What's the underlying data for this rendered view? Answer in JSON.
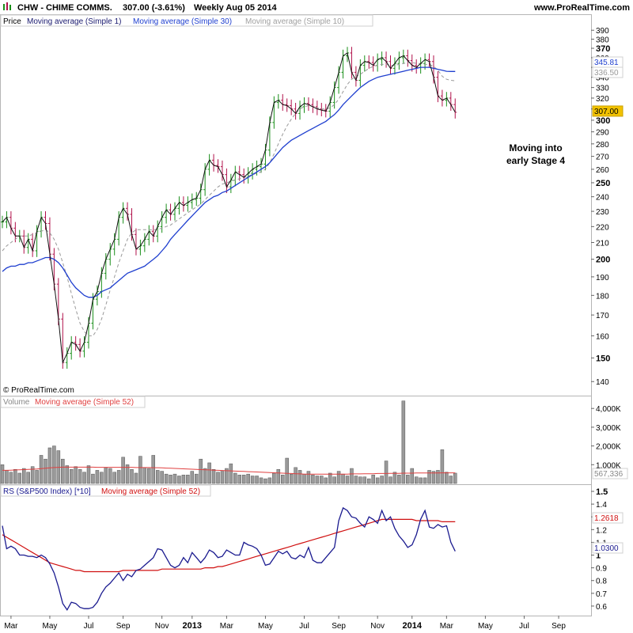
{
  "header": {
    "symbol": "CHW - CHIME COMMS.",
    "quote": "307.00 (-3.61%)",
    "period": "Weekly  Aug 05 2014",
    "site": "www.ProRealTime.com",
    "copyright": "© ProRealTime.com"
  },
  "colors": {
    "up": "#1a8f1a",
    "down": "#b0104a",
    "price_line": "#111111",
    "ma30": "#1f3fcf",
    "ma10": "#999999",
    "volume_bar": "#9a9a9a",
    "volume_ma": "#e04040",
    "rs_line": "#1a1a8f",
    "rs_ma": "#d01010",
    "last_price_box": "#f2c200"
  },
  "annotation": [
    "Moving into",
    "early Stage 4"
  ],
  "chart_data": [
    {
      "type": "candlestick",
      "panel": "price",
      "legend": [
        "Price",
        "Moving average (Simple 1)",
        "Moving average (Simple 30)",
        "Moving average (Simple 10)"
      ],
      "scale": "log",
      "ylim": [
        135,
        392
      ],
      "y_ticks": [
        140,
        150,
        160,
        170,
        180,
        190,
        200,
        210,
        220,
        230,
        240,
        250,
        260,
        270,
        280,
        290,
        300,
        310,
        320,
        330,
        340,
        350,
        360,
        370,
        380,
        390
      ],
      "y_ticks_bold": [
        150,
        200,
        250,
        300,
        370
      ],
      "close": [
        223,
        226,
        219,
        214,
        214,
        207,
        212,
        205,
        217,
        226,
        222,
        203,
        186,
        168,
        148,
        152,
        157,
        156,
        153,
        157,
        166,
        178,
        182,
        192,
        200,
        206,
        212,
        226,
        232,
        228,
        215,
        206,
        208,
        212,
        217,
        214,
        220,
        226,
        231,
        228,
        232,
        236,
        234,
        236,
        238,
        239,
        245,
        260,
        267,
        263,
        262,
        256,
        247,
        252,
        258,
        256,
        254,
        257,
        260,
        262,
        264,
        275,
        298,
        316,
        318,
        314,
        313,
        310,
        306,
        312,
        315,
        314,
        312,
        310,
        309,
        308,
        316,
        330,
        345,
        362,
        365,
        345,
        337,
        352,
        356,
        355,
        352,
        358,
        360,
        356,
        349,
        354,
        360,
        362,
        357,
        352,
        350,
        354,
        358,
        356,
        340,
        322,
        318,
        320,
        314,
        307
      ],
      "ma30": [
        193,
        195,
        196,
        196,
        197,
        197,
        198,
        198,
        199,
        200,
        201,
        201,
        200,
        198,
        195,
        191,
        187,
        184,
        182,
        180,
        179,
        179,
        180,
        182,
        183,
        184,
        186,
        188,
        190,
        192,
        193,
        194,
        195,
        196,
        198,
        200,
        202,
        205,
        208,
        212,
        215,
        218,
        221,
        224,
        227,
        230,
        233,
        236,
        238,
        240,
        241,
        243,
        244,
        246,
        248,
        250,
        252,
        254,
        256,
        258,
        260,
        262,
        265,
        269,
        273,
        277,
        280,
        283,
        285,
        287,
        289,
        291,
        293,
        295,
        297,
        299,
        302,
        305,
        309,
        314,
        318,
        322,
        326,
        330,
        333,
        336,
        338,
        340,
        341,
        342,
        343,
        344,
        345,
        346,
        347,
        348,
        349,
        350,
        350,
        350,
        349,
        348,
        347,
        346,
        345.81,
        345.81
      ],
      "ma10": [
        205,
        208,
        210,
        212,
        214,
        214,
        214,
        215,
        216,
        217,
        218,
        216,
        212,
        206,
        198,
        190,
        181,
        173,
        166,
        162,
        160,
        160,
        163,
        168,
        175,
        183,
        190,
        198,
        205,
        212,
        216,
        218,
        218,
        218,
        218,
        218,
        218,
        219,
        220,
        221,
        223,
        225,
        227,
        229,
        231,
        233,
        235,
        238,
        241,
        244,
        247,
        249,
        250,
        251,
        252,
        253,
        254,
        255,
        256,
        257,
        258,
        260,
        265,
        272,
        280,
        288,
        295,
        301,
        306,
        310,
        312,
        313,
        312,
        311,
        310,
        310,
        311,
        314,
        319,
        326,
        333,
        338,
        341,
        343,
        346,
        349,
        351,
        352,
        353,
        353,
        352,
        352,
        353,
        354,
        355,
        355,
        354,
        354,
        353,
        353,
        351,
        347,
        341,
        338,
        337,
        336.5
      ],
      "last_labels": {
        "ma30": "345.81",
        "ma10": "336.50",
        "price": "307.00"
      }
    },
    {
      "type": "bar",
      "panel": "volume",
      "legend": [
        "Volume",
        "Moving average (Simple 52)"
      ],
      "ylim": [
        0,
        4600000
      ],
      "y_tick_labels": [
        "1,000K",
        "2,000K",
        "3,000K",
        "4,000K"
      ],
      "y_tick_values": [
        1000000,
        2000000,
        3000000,
        4000000
      ],
      "values": [
        1000000,
        700000,
        600000,
        750000,
        550000,
        800000,
        600000,
        900000,
        700000,
        1500000,
        1300000,
        1900000,
        2000000,
        1750000,
        1300000,
        950000,
        750000,
        900000,
        750000,
        600000,
        950000,
        500000,
        700000,
        600000,
        850000,
        800000,
        600000,
        700000,
        1400000,
        1000000,
        750000,
        550000,
        1450000,
        850000,
        800000,
        1500000,
        700000,
        650000,
        500000,
        450000,
        500000,
        400000,
        450000,
        450000,
        650000,
        500000,
        1300000,
        800000,
        1100000,
        750000,
        600000,
        650000,
        800000,
        1050000,
        550000,
        450000,
        450000,
        500000,
        400000,
        400000,
        300000,
        250000,
        300000,
        550000,
        750000,
        450000,
        1350000,
        500000,
        850000,
        700000,
        500000,
        650000,
        450000,
        400000,
        400000,
        300000,
        550000,
        350000,
        650000,
        500000,
        400000,
        800000,
        400000,
        350000,
        350000,
        250000,
        450000,
        300000,
        400000,
        1200000,
        350000,
        600000,
        450000,
        4400000,
        450000,
        800000,
        350000,
        300000,
        300000,
        700000,
        650000,
        700000,
        1800000,
        600000,
        400000,
        550000
      ],
      "ma52": [
        700000,
        700000,
        710000,
        720000,
        730000,
        740000,
        750000,
        760000,
        770000,
        790000,
        810000,
        830000,
        850000,
        860000,
        870000,
        870000,
        870000,
        870000,
        870000,
        870000,
        870000,
        870000,
        860000,
        860000,
        860000,
        860000,
        860000,
        860000,
        860000,
        860000,
        860000,
        850000,
        850000,
        850000,
        850000,
        840000,
        840000,
        830000,
        820000,
        810000,
        800000,
        790000,
        780000,
        770000,
        760000,
        750000,
        740000,
        730000,
        720000,
        710000,
        700000,
        690000,
        680000,
        670000,
        660000,
        650000,
        640000,
        630000,
        620000,
        610000,
        600000,
        590000,
        580000,
        570000,
        560000,
        550000,
        540000,
        530000,
        520000,
        510000,
        500000,
        500000,
        500000,
        500000,
        500000,
        500000,
        500000,
        500000,
        500000,
        500000,
        500000,
        510000,
        510000,
        510000,
        520000,
        520000,
        520000,
        530000,
        530000,
        530000,
        540000,
        540000,
        540000,
        550000,
        550000,
        550000,
        555000,
        560000,
        560000,
        560000,
        560000,
        563000,
        565000,
        566000,
        567000,
        567336
      ],
      "last_label": "567,336"
    },
    {
      "type": "line",
      "panel": "rs",
      "legend": [
        "RS (S&P500 Index) [*10]",
        "Moving average (Simple 52)"
      ],
      "ylim": [
        0.55,
        1.5
      ],
      "y_ticks": [
        0.6,
        0.7,
        0.8,
        0.9,
        1.0,
        1.1,
        1.2,
        1.3,
        1.4,
        1.5
      ],
      "y_tick_labels": [
        "0.6",
        "0.7",
        "0.8",
        "0.9",
        "1",
        "1.1",
        "1.2",
        "1.3",
        "1.4",
        "1.5"
      ],
      "values": [
        1.23,
        1.05,
        1.07,
        1.05,
        1.0,
        1.0,
        0.99,
        0.99,
        0.98,
        1.0,
        0.98,
        0.93,
        0.86,
        0.75,
        0.62,
        0.57,
        0.63,
        0.62,
        0.59,
        0.58,
        0.58,
        0.59,
        0.63,
        0.7,
        0.75,
        0.78,
        0.82,
        0.86,
        0.8,
        0.85,
        0.83,
        0.88,
        0.89,
        0.92,
        0.95,
        0.98,
        1.05,
        1.04,
        0.98,
        0.92,
        0.9,
        0.92,
        0.98,
        0.94,
        1.02,
        0.98,
        0.94,
        0.98,
        1.04,
        1.02,
        0.98,
        0.99,
        1.04,
        1.02,
        1.0,
        1.0,
        1.1,
        1.08,
        1.07,
        1.05,
        1.0,
        0.92,
        0.93,
        0.98,
        1.03,
        1.01,
        1.03,
        0.98,
        0.97,
        1.0,
        0.98,
        1.06,
        0.96,
        0.94,
        0.94,
        0.98,
        1.02,
        1.06,
        1.27,
        1.37,
        1.35,
        1.3,
        1.29,
        1.25,
        1.22,
        1.3,
        1.28,
        1.25,
        1.35,
        1.27,
        1.3,
        1.21,
        1.15,
        1.11,
        1.06,
        1.08,
        1.16,
        1.28,
        1.35,
        1.22,
        1.21,
        1.24,
        1.22,
        1.23,
        1.1,
        1.03
      ],
      "ma52": [
        1.16,
        1.14,
        1.12,
        1.1,
        1.08,
        1.06,
        1.04,
        1.02,
        1.0,
        0.98,
        0.96,
        0.94,
        0.93,
        0.92,
        0.91,
        0.9,
        0.89,
        0.88,
        0.88,
        0.87,
        0.87,
        0.87,
        0.87,
        0.87,
        0.87,
        0.87,
        0.87,
        0.87,
        0.88,
        0.88,
        0.88,
        0.88,
        0.88,
        0.88,
        0.88,
        0.88,
        0.88,
        0.89,
        0.89,
        0.89,
        0.89,
        0.89,
        0.89,
        0.89,
        0.89,
        0.89,
        0.89,
        0.9,
        0.9,
        0.9,
        0.91,
        0.91,
        0.92,
        0.93,
        0.94,
        0.95,
        0.96,
        0.97,
        0.98,
        0.99,
        1.0,
        1.01,
        1.02,
        1.03,
        1.04,
        1.05,
        1.06,
        1.07,
        1.08,
        1.09,
        1.1,
        1.11,
        1.12,
        1.13,
        1.14,
        1.15,
        1.16,
        1.17,
        1.18,
        1.19,
        1.2,
        1.21,
        1.22,
        1.23,
        1.24,
        1.25,
        1.26,
        1.27,
        1.28,
        1.28,
        1.28,
        1.28,
        1.28,
        1.28,
        1.28,
        1.28,
        1.27,
        1.27,
        1.27,
        1.27,
        1.27,
        1.27,
        1.2618,
        1.2618,
        1.2618,
        1.2618
      ],
      "last_labels": {
        "ma52": "1.2618",
        "rs": "1.0300"
      }
    }
  ],
  "x_axis": {
    "labels": [
      {
        "text": "Mar",
        "week": 2,
        "bold": false
      },
      {
        "text": "May",
        "week": 11,
        "bold": false
      },
      {
        "text": "Jul",
        "week": 20,
        "bold": false
      },
      {
        "text": "Sep",
        "week": 28,
        "bold": false
      },
      {
        "text": "Nov",
        "week": 37,
        "bold": false
      },
      {
        "text": "2013",
        "week": 44,
        "bold": true
      },
      {
        "text": "Mar",
        "week": 52,
        "bold": false
      },
      {
        "text": "May",
        "week": 61,
        "bold": false
      },
      {
        "text": "Jul",
        "week": 70,
        "bold": false
      },
      {
        "text": "Sep",
        "week": 78,
        "bold": false
      },
      {
        "text": "Nov",
        "week": 87,
        "bold": false
      },
      {
        "text": "2014",
        "week": 95,
        "bold": true
      },
      {
        "text": "Mar",
        "week": 103,
        "bold": false
      },
      {
        "text": "May",
        "week": 112,
        "bold": false
      },
      {
        "text": "Jul",
        "week": 121,
        "bold": false
      },
      {
        "text": "Sep",
        "week": 129,
        "bold": false
      }
    ]
  }
}
